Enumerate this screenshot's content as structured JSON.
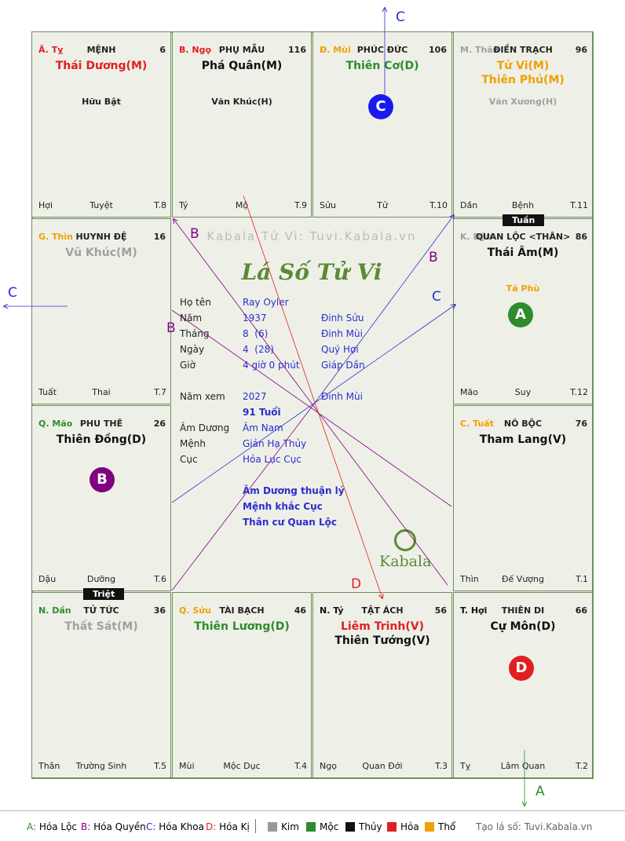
{
  "cells": [
    {
      "id": "ty",
      "branch": "Ã. Tỵ",
      "branch_color": "#e02020",
      "house": "MỆNH",
      "num": "6",
      "stars": [
        {
          "name": "Thái Dương(M)",
          "color": "#e02020"
        }
      ],
      "minor": "Hữu Bật",
      "minor_color": "#222222",
      "left": "Hợi",
      "center": "Tuyệt",
      "right": "T.8"
    },
    {
      "id": "ngo",
      "branch": "B. Ngọ",
      "branch_color": "#e02020",
      "house": "PHỤ MẪU",
      "num": "116",
      "stars": [
        {
          "name": "Phá Quân(M)",
          "color": "#111111"
        }
      ],
      "minor": "Văn Khúc(H)",
      "minor_color": "#222222",
      "left": "Tý",
      "center": "Mộ",
      "right": "T.9"
    },
    {
      "id": "mui",
      "branch": "Đ. Mùi",
      "branch_color": "#f0a000",
      "house": "PHÚC ĐỨC",
      "num": "106",
      "stars": [
        {
          "name": "Thiên Cơ(D)",
          "color": "#2e8b2e"
        }
      ],
      "minor": "",
      "minor_color": "#222222",
      "left": "Sửu",
      "center": "Tử",
      "right": "T.10"
    },
    {
      "id": "than",
      "branch": "M. Thân",
      "branch_color": "#a0a0a0",
      "house": "ĐIỀN TRẠCH",
      "num": "96",
      "stars": [
        {
          "name": "Tử Vi(M)",
          "color": "#f0a000"
        },
        {
          "name": "Thiên Phủ(M)",
          "color": "#f0a000"
        }
      ],
      "minor": "Văn Xương(H)",
      "minor_color": "#a0a0a0",
      "left": "Dần",
      "center": "Bệnh",
      "right": "T.11"
    },
    {
      "id": "thin",
      "branch": "G. Thìn",
      "branch_color": "#f0a000",
      "house": "HUYNH ĐỆ",
      "num": "16",
      "stars": [
        {
          "name": "Vũ Khúc(M)",
          "color": "#a0a0a0"
        }
      ],
      "minor": "",
      "minor_color": "#222222",
      "left": "Tuất",
      "center": "Thai",
      "right": "T.7"
    },
    {
      "id": "dau",
      "branch": "K. Dậu",
      "branch_color": "#a0a0a0",
      "house": "QUAN LỘC <THÂN>",
      "num": "86",
      "stars": [
        {
          "name": "Thái Âm(M)",
          "color": "#111111"
        }
      ],
      "minor": "Tả Phù",
      "minor_color": "#f0a000",
      "left": "Mão",
      "center": "Suy",
      "right": "T.12"
    },
    {
      "id": "mao",
      "branch": "Q. Mão",
      "branch_color": "#2e8b2e",
      "house": "PHU THÊ",
      "num": "26",
      "stars": [
        {
          "name": "Thiên Đồng(D)",
          "color": "#111111"
        }
      ],
      "minor": "",
      "minor_color": "#222222",
      "left": "Dậu",
      "center": "Dưỡng",
      "right": "T.6"
    },
    {
      "id": "tuat",
      "branch": "C. Tuất",
      "branch_color": "#f0a000",
      "house": "NÔ BỘC",
      "num": "76",
      "stars": [
        {
          "name": "Tham Lang(V)",
          "color": "#111111"
        }
      ],
      "minor": "",
      "minor_color": "#222222",
      "left": "Thìn",
      "center": "Đế Vượng",
      "right": "T.1"
    },
    {
      "id": "dan",
      "branch": "N. Dần",
      "branch_color": "#2e8b2e",
      "house": "TỬ TỨC",
      "num": "36",
      "stars": [
        {
          "name": "Thất Sát(M)",
          "color": "#a0a0a0"
        }
      ],
      "minor": "",
      "minor_color": "#222222",
      "left": "Thân",
      "center": "Trường Sinh",
      "right": "T.5"
    },
    {
      "id": "suu",
      "branch": "Q. Sửu",
      "branch_color": "#f0a000",
      "house": "TÀI BẠCH",
      "num": "46",
      "stars": [
        {
          "name": "Thiên Lương(D)",
          "color": "#2e8b2e"
        }
      ],
      "minor": "",
      "minor_color": "#222222",
      "left": "Mùi",
      "center": "Mộc Dục",
      "right": "T.4"
    },
    {
      "id": "tys",
      "branch": "N. Tý",
      "branch_color": "#111111",
      "house": "TẬT ÁCH",
      "num": "56",
      "stars": [
        {
          "name": "Liêm Trinh(V)",
          "color": "#e02020"
        },
        {
          "name": "Thiên Tướng(V)",
          "color": "#111111"
        }
      ],
      "minor": "",
      "minor_color": "#222222",
      "left": "Ngọ",
      "center": "Quan Đới",
      "right": "T.3"
    },
    {
      "id": "hoi",
      "branch": "T. Hợi",
      "branch_color": "#111111",
      "house": "THIÊN DI",
      "num": "66",
      "stars": [
        {
          "name": "Cự Môn(D)",
          "color": "#111111"
        }
      ],
      "minor": "",
      "minor_color": "#222222",
      "left": "Tỵ",
      "center": "Lâm Quan",
      "right": "T.2"
    }
  ],
  "markers": {
    "tuan": "Tuần",
    "triet": "Triệt"
  },
  "circles": {
    "mui": "C",
    "dau": "A",
    "mao": "B",
    "hoi": "D"
  },
  "center": {
    "watermark": "Kabala Tử Vi: Tuvi.Kabala.vn",
    "logo": "Lá Số Tử Vi",
    "rows": [
      {
        "label": "Họ tên",
        "value": "Ray Oyler",
        "extra": ""
      },
      {
        "label": "Năm",
        "value": "1937",
        "extra": "Đinh Sửu"
      },
      {
        "label": "Tháng",
        "value": "8  (6)",
        "extra": "Đinh Mùi"
      },
      {
        "label": "Ngày",
        "value": "4  (28)",
        "extra": "Quý Hợi"
      },
      {
        "label": "Giờ",
        "value": "4 giờ 0 phút",
        "extra": "Giáp Dần"
      }
    ],
    "year_view": {
      "label": "Năm xem",
      "value": "2027",
      "extra": "Đinh Mùi"
    },
    "age": "91 Tuổi",
    "rows2": [
      {
        "label": "Âm Dương",
        "value": "Âm Nam"
      },
      {
        "label": "Mệnh",
        "value": "Giản Hạ Thủy"
      },
      {
        "label": "Cục",
        "value": "Hỏa Lục Cục"
      }
    ],
    "notes": [
      "Âm Dương thuận lý",
      "Mệnh khắc Cục",
      "Thân cư Quan Lộc"
    ],
    "brand": "Kabala"
  },
  "arrow_labels": [
    "C",
    "C",
    "A",
    "D",
    "B",
    "B",
    "B",
    "C"
  ],
  "legend": {
    "items": [
      {
        "key": "A:",
        "text": "Hóa Lộc",
        "color": "#2e8b2e"
      },
      {
        "key": "B:",
        "text": "Hóa Quyền",
        "color": "#800080"
      },
      {
        "key": "C:",
        "text": "Hóa Khoa",
        "color": "#2c2ccf"
      },
      {
        "key": "D:",
        "text": "Hóa Kị",
        "color": "#e02020"
      }
    ],
    "elements": [
      {
        "text": "Kim",
        "color": "#999999"
      },
      {
        "text": "Mộc",
        "color": "#2e8b2e"
      },
      {
        "text": "Thủy",
        "color": "#111111"
      },
      {
        "text": "Hỏa",
        "color": "#e02020"
      },
      {
        "text": "Thổ",
        "color": "#f0a000"
      }
    ],
    "site": "Tạo lá số: Tuvi.Kabala.vn"
  }
}
